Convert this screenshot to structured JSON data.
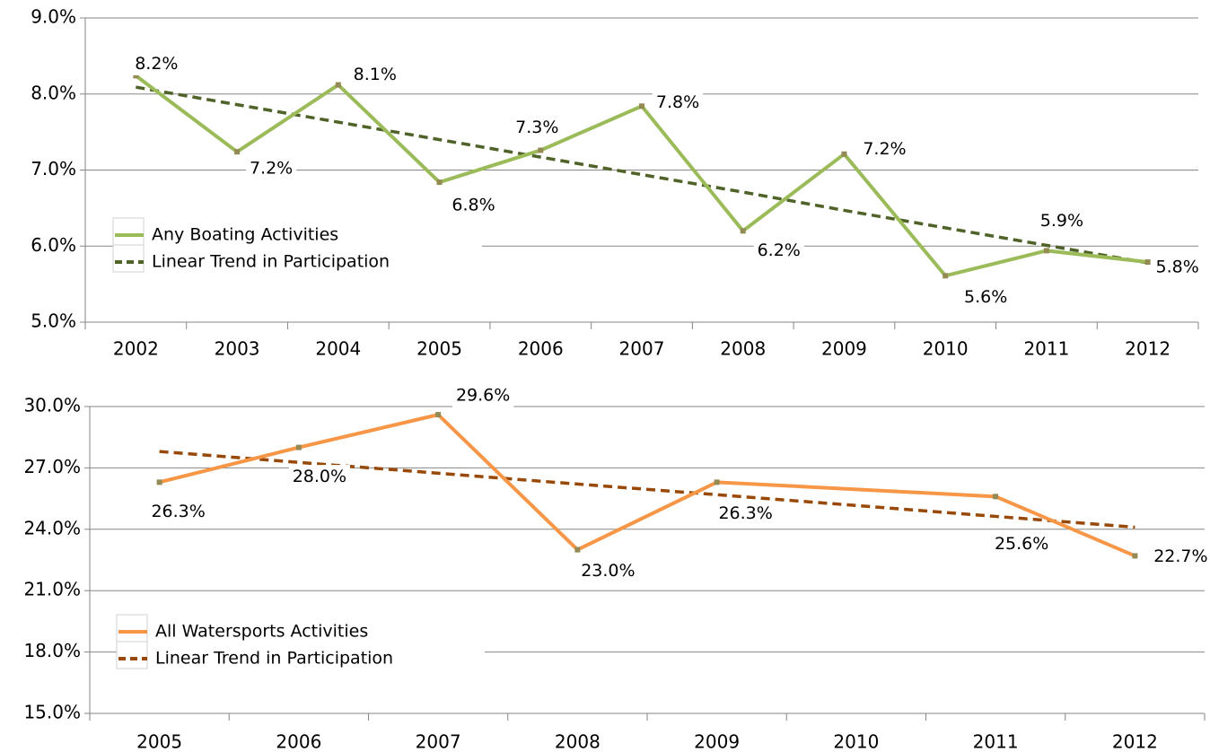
{
  "chart_data": [
    {
      "type": "line",
      "categories": [
        "2002",
        "2003",
        "2004",
        "2005",
        "2006",
        "2007",
        "2008",
        "2009",
        "2010",
        "2011",
        "2012"
      ],
      "ylim": [
        5,
        9
      ],
      "yticks": [
        {
          "value": 5,
          "label": "5.0%"
        },
        {
          "value": 6,
          "label": "6.0%"
        },
        {
          "value": 7,
          "label": "7.0%"
        },
        {
          "value": 8,
          "label": "8.0%"
        },
        {
          "value": 9,
          "label": "9.0%"
        }
      ],
      "grid": true,
      "legend": "lower-left",
      "marker_color": "#948a54",
      "series": [
        {
          "name": "Any Boating Activities",
          "color": "#9bbb59",
          "values": [
            8.24,
            7.24,
            8.12,
            6.84,
            7.26,
            7.84,
            6.2,
            7.21,
            5.61,
            5.94,
            5.79
          ],
          "value_labels": [
            "8.2%",
            "7.2%",
            "8.1%",
            "6.8%",
            "7.3%",
            "7.8%",
            "6.2%",
            "7.2%",
            "5.6%",
            "5.9%",
            "5.8%"
          ]
        },
        {
          "name": "Linear Trend in Participation",
          "color": "#4f6228",
          "dashed": true,
          "values": [
            8.09,
            7.86,
            7.63,
            7.4,
            7.17,
            6.94,
            6.71,
            6.47,
            6.24,
            6.01,
            5.78
          ]
        }
      ]
    },
    {
      "type": "line",
      "x": [
        2005,
        2006,
        2007,
        2008,
        2009,
        2011,
        2012
      ],
      "xlim": [
        2004.5,
        2012.5
      ],
      "xticks": [
        2005,
        2006,
        2007,
        2008,
        2009,
        2010,
        2011,
        2012
      ],
      "ylim": [
        15,
        30
      ],
      "yticks": [
        {
          "value": 15,
          "label": "15.0%"
        },
        {
          "value": 18,
          "label": "18.0%"
        },
        {
          "value": 21,
          "label": "21.0%"
        },
        {
          "value": 24,
          "label": "24.0%"
        },
        {
          "value": 27,
          "label": "27.0%"
        },
        {
          "value": 30,
          "label": "30.0%"
        }
      ],
      "grid": true,
      "legend": "lower-left",
      "marker_color": "#948a54",
      "series": [
        {
          "name": "All Watersports Activities",
          "color": "#f79646",
          "values": [
            26.3,
            28.0,
            29.6,
            23.0,
            26.3,
            25.6,
            22.7
          ],
          "value_labels": [
            "26.3%",
            "28.0%",
            "29.6%",
            "23.0%",
            "26.3%",
            "25.6%",
            "22.7%"
          ]
        },
        {
          "name": "Linear Trend in Participation",
          "color": "#984807",
          "dashed": true,
          "values": [
            27.8,
            27.27,
            26.74,
            26.21,
            25.69,
            24.63,
            24.1
          ]
        }
      ]
    }
  ]
}
